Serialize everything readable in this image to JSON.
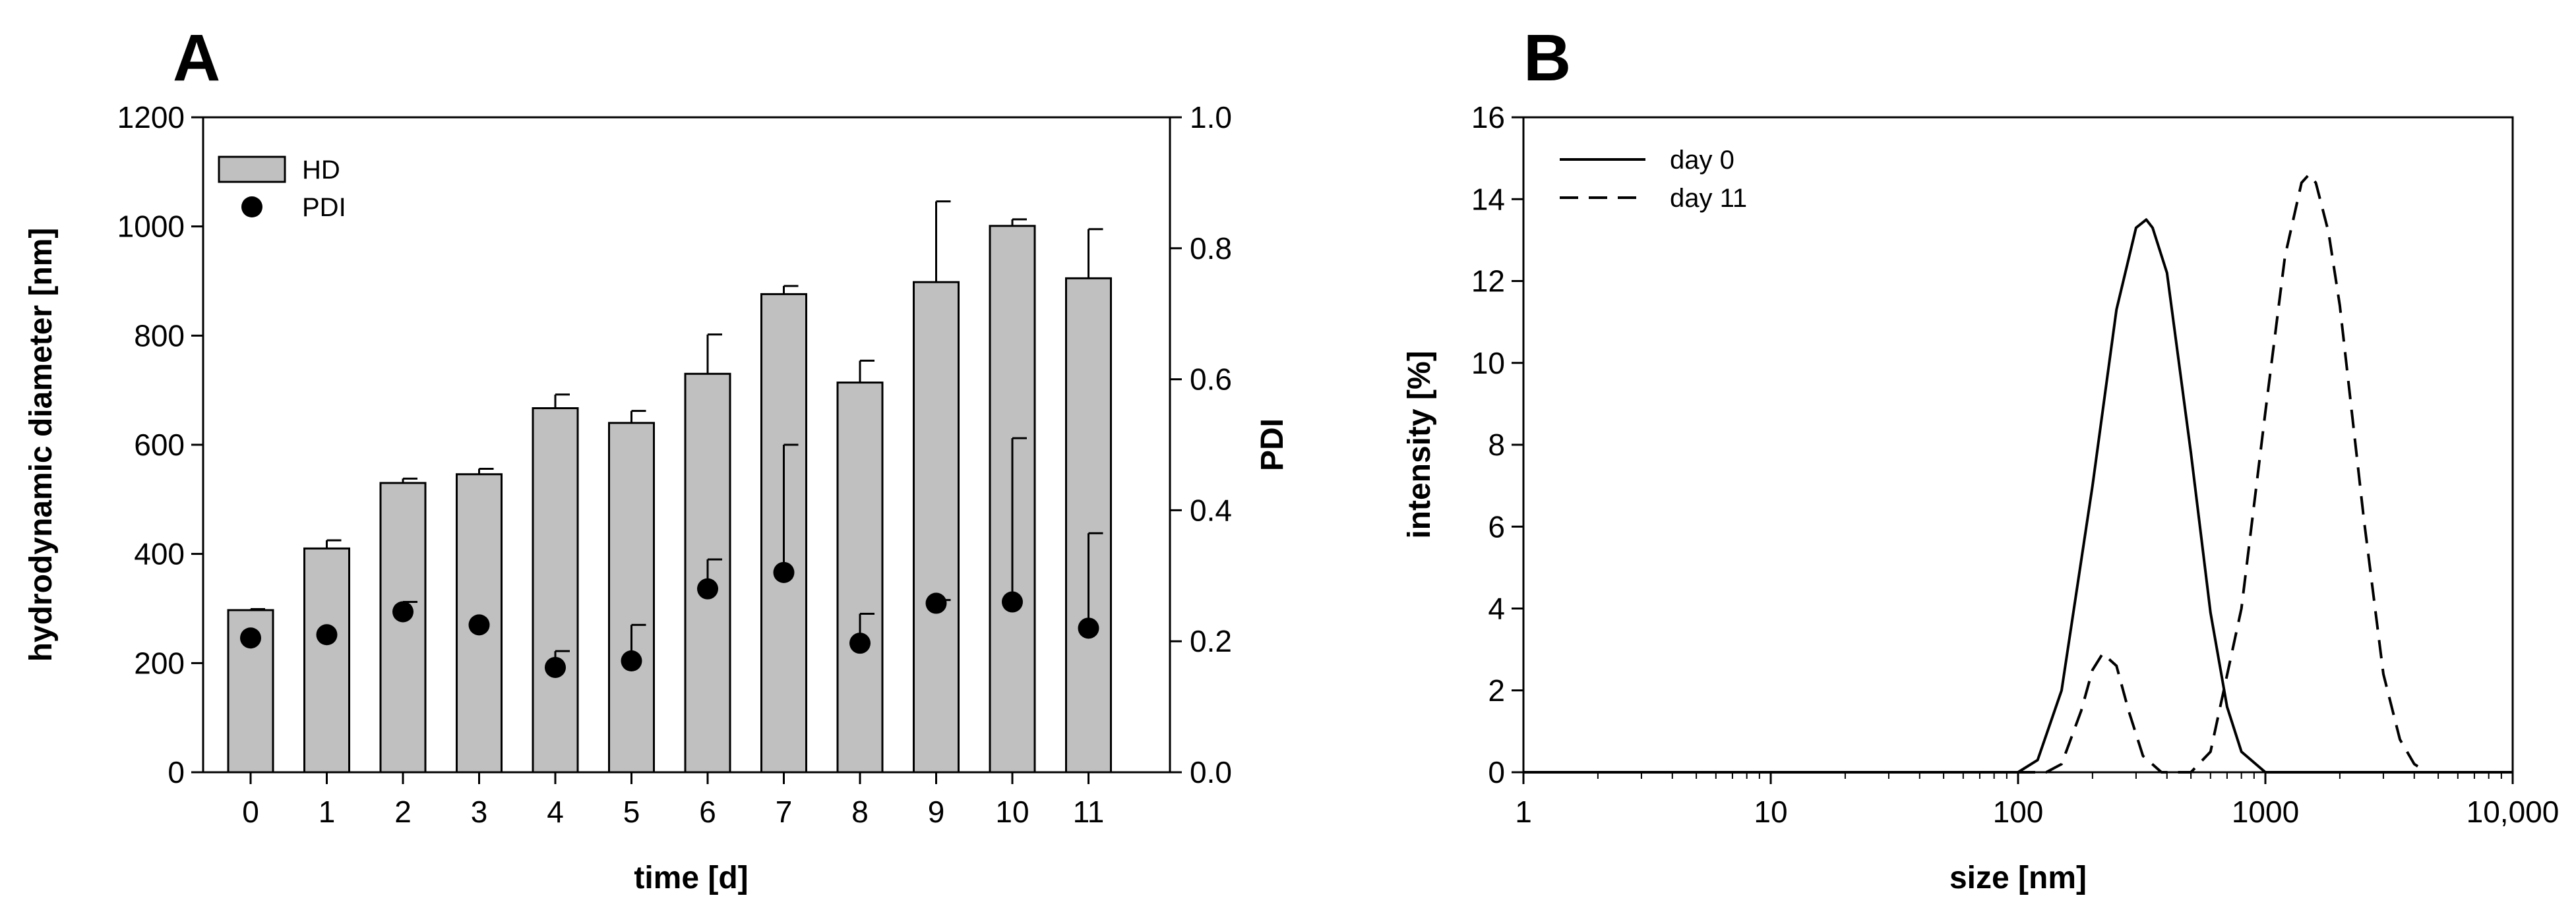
{
  "chart_data": [
    {
      "panel_label": "A",
      "type": "bar",
      "categories": [
        "0",
        "1",
        "2",
        "3",
        "4",
        "5",
        "6",
        "7",
        "8",
        "9",
        "10",
        "11"
      ],
      "series": [
        {
          "name": "HD",
          "axis": "left",
          "kind": "bar",
          "values": [
            297,
            410,
            530,
            546,
            667,
            640,
            730,
            876,
            714,
            898,
            1001,
            905
          ],
          "error": [
            2,
            15,
            8,
            10,
            25,
            22,
            72,
            15,
            40,
            148,
            12,
            90
          ]
        },
        {
          "name": "PDI",
          "axis": "right",
          "kind": "scatter",
          "values": [
            0.205,
            0.21,
            0.245,
            0.225,
            0.16,
            0.17,
            0.28,
            0.305,
            0.197,
            0.258,
            0.26,
            0.22
          ],
          "error": [
            0,
            0,
            0.015,
            0,
            0.025,
            0.055,
            0.045,
            0.195,
            0.045,
            0.005,
            0.25,
            0.145
          ]
        }
      ],
      "xlabel": "time [d]",
      "ylabel": "hydrodynamic diameter [nm]",
      "ylim": [
        0,
        1200
      ],
      "yticks": [
        "0",
        "200",
        "400",
        "600",
        "800",
        "1000",
        "1200"
      ],
      "y2label": "PDI",
      "y2lim": [
        0,
        1.0
      ],
      "y2ticks": [
        "0.0",
        "0.2",
        "0.4",
        "0.6",
        "0.8",
        "1.0"
      ],
      "legend": [
        "HD",
        "PDI"
      ],
      "legend_position": "top-left",
      "colors": {
        "bar_fill": "#c0c0c0",
        "marker": "#000000"
      }
    },
    {
      "panel_label": "B",
      "type": "line",
      "xscale": "log",
      "xlim": [
        1,
        10000
      ],
      "xticks": [
        "1",
        "10",
        "100",
        "1000",
        "10,000"
      ],
      "ylim": [
        0,
        16
      ],
      "yticks": [
        "0",
        "2",
        "4",
        "6",
        "8",
        "10",
        "12",
        "14",
        "16"
      ],
      "xlabel": "size [nm]",
      "ylabel": "intensity [%]",
      "series": [
        {
          "name": "day 0",
          "style": "solid",
          "x": [
            1,
            100,
            120,
            150,
            200,
            250,
            300,
            330,
            350,
            400,
            500,
            600,
            700,
            800,
            1000,
            10000
          ],
          "y": [
            0,
            0,
            0.3,
            2.0,
            7.0,
            11.3,
            13.3,
            13.5,
            13.3,
            12.2,
            7.8,
            3.9,
            1.6,
            0.5,
            0,
            0
          ]
        },
        {
          "name": "day 11",
          "style": "dashed",
          "x": [
            1,
            130,
            150,
            180,
            200,
            220,
            250,
            280,
            320,
            380,
            450,
            500,
            600,
            800,
            1000,
            1200,
            1400,
            1500,
            1600,
            1800,
            2000,
            2500,
            3000,
            3500,
            4000,
            4500,
            10000
          ],
          "y": [
            0,
            0,
            0.2,
            1.5,
            2.5,
            2.9,
            2.6,
            1.5,
            0.4,
            0,
            0,
            0,
            0.5,
            4.0,
            8.8,
            12.6,
            14.4,
            14.6,
            14.4,
            13.2,
            11.4,
            6.2,
            2.4,
            0.8,
            0.2,
            0,
            0
          ]
        }
      ],
      "legend": [
        "day 0",
        "day 11"
      ],
      "legend_position": "top-left"
    }
  ]
}
